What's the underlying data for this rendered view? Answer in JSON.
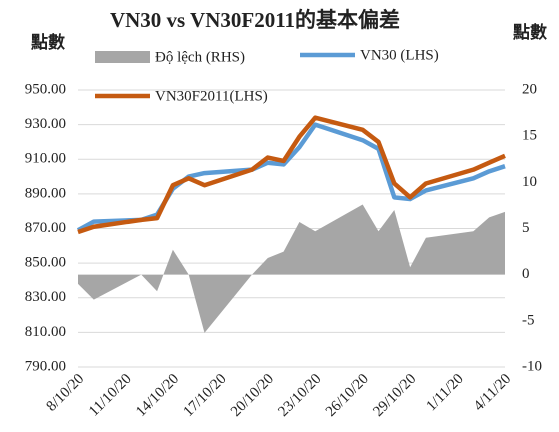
{
  "chart_data": {
    "type": "line-area-combo",
    "title": "VN30 vs VN30F2011的基本偏差",
    "y_label": "點數",
    "y2_label": "點數",
    "x": [
      "8/10/20",
      "9/10/20",
      "12/10/20",
      "13/10/20",
      "14/10/20",
      "15/10/20",
      "16/10/20",
      "19/10/20",
      "20/10/20",
      "21/10/20",
      "22/10/20",
      "23/10/20",
      "26/10/20",
      "27/10/20",
      "28/10/20",
      "29/10/20",
      "30/10/20",
      "2/11/20",
      "3/11/20",
      "4/11/20"
    ],
    "xticks": [
      "8/10/20",
      "11/10/20",
      "14/10/20",
      "17/10/20",
      "20/10/20",
      "23/10/20",
      "26/10/20",
      "29/10/20",
      "1/11/20",
      "4/11/20"
    ],
    "series": [
      {
        "name": "Độ lệch (RHS)",
        "color": "#a6a6a6",
        "kind": "area",
        "axis": "y2",
        "values": [
          -1,
          -2.7,
          0,
          -1.8,
          2.7,
          0,
          -6.3,
          0,
          1.8,
          2.5,
          5.7,
          4.7,
          7.6,
          4.7,
          7,
          0.8,
          4,
          4.7,
          6.2,
          6.8
        ]
      },
      {
        "name": "VN30 (LHS)",
        "color": "#5b9bd5",
        "kind": "line",
        "values": [
          869,
          874,
          875,
          878,
          893,
          900,
          902,
          904,
          908,
          907,
          917,
          930,
          921,
          916,
          888,
          887,
          892,
          899,
          903,
          906
        ]
      },
      {
        "name": "VN30F2011(LHS)",
        "color": "#c55a11",
        "kind": "line",
        "values": [
          868,
          871,
          875,
          876,
          895,
          899,
          895,
          904,
          911,
          909,
          923,
          934,
          927,
          920,
          896,
          888,
          896,
          904,
          908,
          912
        ]
      }
    ],
    "ylim": [
      790,
      950
    ],
    "yticks": [
      {
        "value": 950,
        "label": "950.00"
      },
      {
        "value": 930,
        "label": "930.00"
      },
      {
        "value": 910,
        "label": "910.00"
      },
      {
        "value": 890,
        "label": "890.00"
      },
      {
        "value": 870,
        "label": "870.00"
      },
      {
        "value": 850,
        "label": "850.00"
      },
      {
        "value": 830,
        "label": "830.00"
      },
      {
        "value": 810,
        "label": "810.00"
      },
      {
        "value": 790,
        "label": "790.00"
      }
    ],
    "y2lim": [
      -10,
      20
    ],
    "y2ticks": [
      20,
      15,
      10,
      5,
      0,
      -5,
      -10
    ],
    "grid": true
  }
}
